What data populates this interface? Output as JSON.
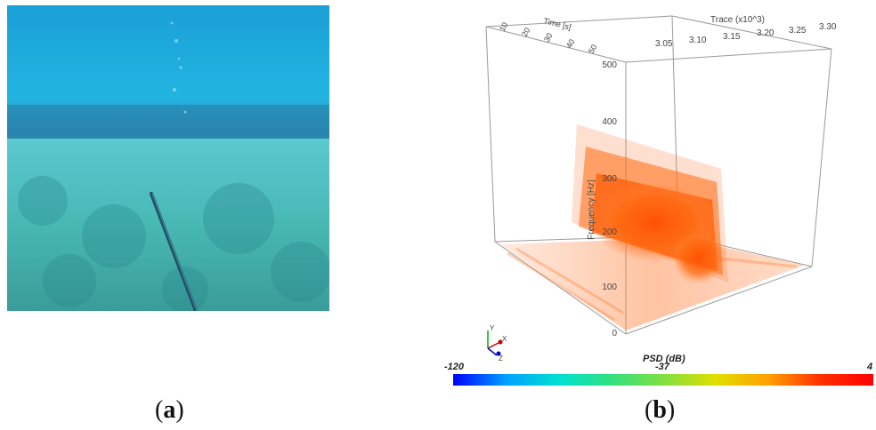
{
  "panel_a": {
    "caption_letter": "a"
  },
  "panel_b": {
    "caption_letter": "b",
    "axis_time_label": "Time [s]",
    "axis_trace_label": "Trace (x10^3)",
    "axis_freq_label": "Frequency [Hz]",
    "time_ticks": [
      "10",
      "20",
      "30",
      "40",
      "50"
    ],
    "trace_ticks": [
      "3.05",
      "3.10",
      "3.15",
      "3.20",
      "3.25",
      "3.30"
    ],
    "freq_ticks": [
      "0",
      "100",
      "200",
      "300",
      "400",
      "500"
    ],
    "orientation_labels": [
      "Y",
      "X",
      "Z"
    ],
    "colorbar": {
      "title": "PSD (dB)",
      "min_label": "-120",
      "mid_label": "-37",
      "max_label": "4",
      "colors": [
        "#0000ff",
        "#00a0ff",
        "#00e0d0",
        "#30e080",
        "#80e040",
        "#e0e000",
        "#ffa000",
        "#ff3000",
        "#ff0000"
      ]
    }
  }
}
